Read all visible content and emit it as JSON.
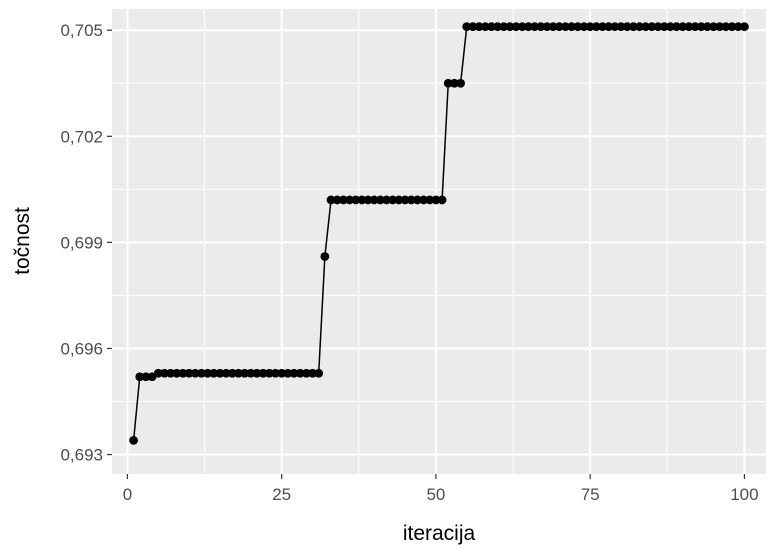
{
  "chart_data": {
    "type": "line",
    "title": "",
    "xlabel": "iteracija",
    "ylabel": "točnost",
    "xlim": [
      -2.5,
      103.5
    ],
    "ylim": [
      0.69245,
      0.7056
    ],
    "x_ticks": [
      0,
      25,
      50,
      75,
      100
    ],
    "x_tick_labels": [
      "0",
      "25",
      "50",
      "75",
      "100"
    ],
    "y_ticks": [
      0.693,
      0.696,
      0.699,
      0.702,
      0.705
    ],
    "y_tick_labels": [
      "0,693",
      "0,696",
      "0,699",
      "0,702",
      "0,705"
    ],
    "grid": true,
    "legend": "none",
    "colors": {
      "panel_background": "#ebebeb",
      "grid_line": "#ffffff",
      "series": "#000000"
    },
    "series": [
      {
        "x": [
          1,
          2,
          3,
          4,
          5,
          6,
          7,
          8,
          9,
          10,
          11,
          12,
          13,
          14,
          15,
          16,
          17,
          18,
          19,
          20,
          21,
          22,
          23,
          24,
          25,
          26,
          27,
          28,
          29,
          30,
          31,
          32,
          33,
          34,
          35,
          36,
          37,
          38,
          39,
          40,
          41,
          42,
          43,
          44,
          45,
          46,
          47,
          48,
          49,
          50,
          51,
          52,
          53,
          54,
          55,
          56,
          57,
          58,
          59,
          60,
          61,
          62,
          63,
          64,
          65,
          66,
          67,
          68,
          69,
          70,
          71,
          72,
          73,
          74,
          75,
          76,
          77,
          78,
          79,
          80,
          81,
          82,
          83,
          84,
          85,
          86,
          87,
          88,
          89,
          90,
          91,
          92,
          93,
          94,
          95,
          96,
          97,
          98,
          99,
          100
        ],
        "y": [
          0.6934,
          0.6952,
          0.6952,
          0.6952,
          0.6953,
          0.6953,
          0.6953,
          0.6953,
          0.6953,
          0.6953,
          0.6953,
          0.6953,
          0.6953,
          0.6953,
          0.6953,
          0.6953,
          0.6953,
          0.6953,
          0.6953,
          0.6953,
          0.6953,
          0.6953,
          0.6953,
          0.6953,
          0.6953,
          0.6953,
          0.6953,
          0.6953,
          0.6953,
          0.6953,
          0.6953,
          0.6986,
          0.7002,
          0.7002,
          0.7002,
          0.7002,
          0.7002,
          0.7002,
          0.7002,
          0.7002,
          0.7002,
          0.7002,
          0.7002,
          0.7002,
          0.7002,
          0.7002,
          0.7002,
          0.7002,
          0.7002,
          0.7002,
          0.7002,
          0.7035,
          0.7035,
          0.7035,
          0.7051,
          0.7051,
          0.7051,
          0.7051,
          0.7051,
          0.7051,
          0.7051,
          0.7051,
          0.7051,
          0.7051,
          0.7051,
          0.7051,
          0.7051,
          0.7051,
          0.7051,
          0.7051,
          0.7051,
          0.7051,
          0.7051,
          0.7051,
          0.7051,
          0.7051,
          0.7051,
          0.7051,
          0.7051,
          0.7051,
          0.7051,
          0.7051,
          0.7051,
          0.7051,
          0.7051,
          0.7051,
          0.7051,
          0.7051,
          0.7051,
          0.7051,
          0.7051,
          0.7051,
          0.7051,
          0.7051,
          0.7051,
          0.7051,
          0.7051,
          0.7051,
          0.7051,
          0.7051
        ]
      }
    ]
  }
}
